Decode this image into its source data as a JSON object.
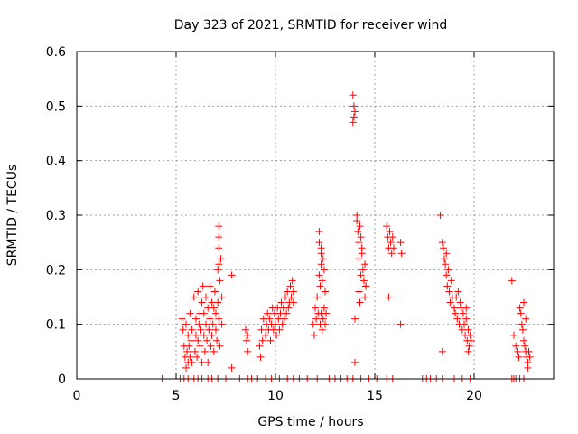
{
  "chart_data": {
    "type": "scatter",
    "title": "Day 323 of 2021, SRMTID for receiver wind",
    "xlabel": "GPS time / hours",
    "ylabel": "SRMTID / TECUs",
    "xlim": [
      0,
      24
    ],
    "ylim": [
      0,
      0.6
    ],
    "x_ticks": [
      0,
      5,
      10,
      15,
      20
    ],
    "y_ticks": [
      0,
      0.1,
      0.2,
      0.3,
      0.4,
      0.5,
      0.6
    ],
    "x_tick_labels": [
      "0",
      "5",
      "10",
      "15",
      "20"
    ],
    "y_tick_labels": [
      "0",
      "0.1",
      "0.2",
      "0.3",
      "0.4",
      "0.5",
      "0.6"
    ],
    "grid": true,
    "marker": "+",
    "color": "#ff0000",
    "series": [
      {
        "name": "SRMTID",
        "x": [
          4.3,
          5.2,
          5.3,
          5.4,
          5.6,
          5.9,
          6.1,
          6.3,
          6.6,
          6.8,
          7.1,
          7.5,
          8.2,
          8.6,
          8.8,
          9.1,
          9.5,
          9.8,
          10.2,
          10.6,
          10.9,
          11.2,
          11.6,
          12.1,
          12.7,
          13.0,
          13.3,
          13.6,
          13.9,
          14.3,
          14.7,
          15.1,
          15.6,
          15.9,
          17.4,
          17.6,
          17.8,
          18.1,
          18.4,
          19.0,
          19.4,
          19.8,
          21.9,
          22.0,
          22.1,
          22.3,
          22.5,
          5.3,
          5.35,
          5.4,
          5.45,
          5.5,
          5.5,
          5.55,
          5.6,
          5.6,
          5.65,
          5.7,
          5.7,
          5.75,
          5.8,
          5.8,
          5.9,
          5.95,
          6.0,
          6.0,
          6.05,
          6.1,
          6.1,
          6.15,
          6.2,
          6.2,
          6.25,
          6.3,
          6.3,
          6.35,
          6.4,
          6.4,
          6.45,
          6.5,
          6.5,
          6.55,
          6.6,
          6.6,
          6.65,
          6.7,
          6.7,
          6.75,
          6.8,
          6.8,
          6.85,
          6.9,
          6.9,
          6.95,
          7.0,
          7.0,
          7.05,
          7.1,
          7.1,
          7.15,
          7.2,
          7.2,
          7.25,
          7.3,
          7.3,
          7.15,
          7.15,
          7.15,
          7.15,
          7.8,
          7.8,
          8.5,
          8.55,
          8.6,
          8.6,
          9.2,
          9.25,
          9.3,
          9.35,
          9.4,
          9.5,
          9.55,
          9.6,
          9.65,
          9.7,
          9.75,
          9.8,
          9.85,
          9.9,
          9.95,
          10.0,
          10.05,
          10.1,
          10.15,
          10.2,
          10.25,
          10.3,
          10.35,
          10.4,
          10.45,
          10.5,
          10.55,
          10.6,
          10.65,
          10.7,
          10.75,
          10.8,
          10.85,
          10.9,
          10.9,
          11.9,
          11.95,
          12.0,
          12.05,
          12.1,
          12.15,
          12.2,
          12.25,
          12.3,
          12.35,
          12.4,
          12.45,
          12.5,
          12.2,
          12.2,
          12.25,
          12.3,
          12.35,
          12.4,
          12.45,
          12.5,
          12.55,
          12.3,
          12.3,
          13.9,
          13.9,
          13.95,
          13.95,
          14.0,
          14.0,
          14.0,
          14.1,
          14.15,
          14.2,
          14.2,
          14.25,
          14.3,
          14.35,
          14.4,
          14.45,
          14.5,
          14.55,
          14.2,
          14.25,
          14.3,
          14.35,
          14.5,
          14.55,
          14.1,
          15.6,
          15.65,
          15.7,
          15.75,
          15.8,
          15.85,
          15.9,
          15.95,
          15.7,
          16.3,
          16.35,
          16.3,
          18.3,
          18.4,
          18.45,
          18.5,
          18.55,
          18.6,
          18.6,
          18.65,
          18.7,
          18.75,
          18.8,
          18.85,
          18.9,
          18.4,
          19.0,
          19.05,
          19.1,
          19.15,
          19.2,
          19.25,
          19.3,
          19.35,
          19.4,
          19.45,
          19.5,
          19.55,
          19.6,
          19.65,
          19.7,
          19.75,
          19.8,
          19.85,
          19.6,
          19.7,
          21.9,
          22.0,
          22.1,
          22.2,
          22.25,
          22.3,
          22.35,
          22.4,
          22.45,
          22.5,
          22.55,
          22.6,
          22.65,
          22.7,
          22.75,
          22.8,
          22.5,
          22.6,
          22.7
        ],
        "y": [
          0,
          0,
          0,
          0,
          0,
          0,
          0,
          0,
          0,
          0,
          0,
          0,
          0,
          0,
          0,
          0,
          0,
          0,
          0,
          0,
          0,
          0,
          0,
          0,
          0,
          0,
          0,
          0,
          0,
          0,
          0,
          0,
          0,
          0,
          0,
          0,
          0,
          0,
          0,
          0,
          0,
          0,
          0,
          0,
          0,
          0,
          0,
          0.11,
          0.09,
          0.06,
          0.04,
          0.1,
          0.02,
          0.05,
          0.08,
          0.03,
          0.06,
          0.12,
          0.04,
          0.07,
          0.09,
          0.03,
          0.15,
          0.05,
          0.11,
          0.08,
          0.04,
          0.16,
          0.07,
          0.1,
          0.12,
          0.06,
          0.09,
          0.14,
          0.03,
          0.17,
          0.08,
          0.12,
          0.05,
          0.15,
          0.1,
          0.07,
          0.13,
          0.03,
          0.09,
          0.17,
          0.11,
          0.06,
          0.14,
          0.08,
          0.1,
          0.13,
          0.05,
          0.16,
          0.09,
          0.12,
          0.07,
          0.2,
          0.14,
          0.11,
          0.18,
          0.06,
          0.22,
          0.15,
          0.1,
          0.28,
          0.26,
          0.24,
          0.21,
          0.02,
          0.19,
          0.09,
          0.07,
          0.05,
          0.08,
          0.06,
          0.04,
          0.09,
          0.07,
          0.11,
          0.08,
          0.1,
          0.12,
          0.09,
          0.11,
          0.07,
          0.1,
          0.13,
          0.09,
          0.12,
          0.1,
          0.08,
          0.13,
          0.11,
          0.09,
          0.12,
          0.14,
          0.1,
          0.13,
          0.11,
          0.15,
          0.12,
          0.16,
          0.13,
          0.14,
          0.17,
          0.15,
          0.18,
          0.14,
          0.16,
          0.1,
          0.08,
          0.13,
          0.11,
          0.15,
          0.12,
          0.19,
          0.17,
          0.21,
          0.18,
          0.22,
          0.2,
          0.16,
          0.27,
          0.25,
          0.1,
          0.12,
          0.09,
          0.11,
          0.13,
          0.1,
          0.12,
          0.24,
          0.23,
          0.52,
          0.47,
          0.5,
          0.48,
          0.49,
          0.03,
          0.11,
          0.29,
          0.27,
          0.25,
          0.22,
          0.28,
          0.26,
          0.24,
          0.2,
          0.18,
          0.21,
          0.17,
          0.16,
          0.14,
          0.19,
          0.23,
          0.15,
          0.17,
          0.3,
          0.28,
          0.26,
          0.24,
          0.27,
          0.25,
          0.23,
          0.26,
          0.24,
          0.15,
          0.25,
          0.23,
          0.1,
          0.3,
          0.25,
          0.24,
          0.22,
          0.21,
          0.19,
          0.23,
          0.17,
          0.2,
          0.16,
          0.14,
          0.18,
          0.15,
          0.05,
          0.13,
          0.12,
          0.15,
          0.11,
          0.16,
          0.1,
          0.14,
          0.13,
          0.09,
          0.12,
          0.1,
          0.08,
          0.11,
          0.07,
          0.09,
          0.06,
          0.08,
          0.07,
          0.13,
          0.05,
          0.18,
          0.08,
          0.06,
          0.05,
          0.04,
          0.13,
          0.12,
          0.1,
          0.09,
          0.07,
          0.06,
          0.05,
          0.04,
          0.03,
          0.05,
          0.04,
          0.14,
          0.11,
          0.02
        ]
      }
    ]
  }
}
